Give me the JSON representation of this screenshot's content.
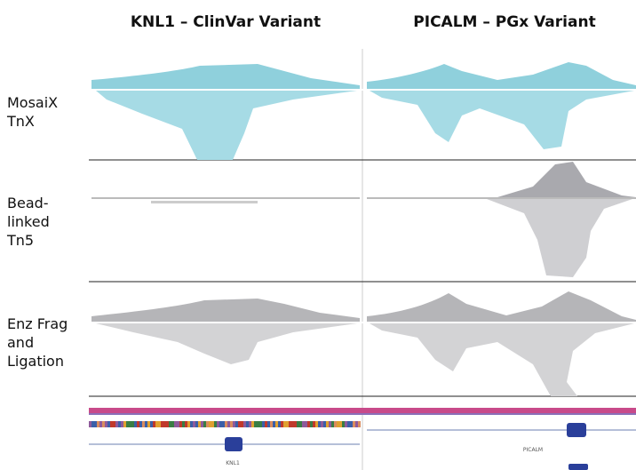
{
  "columns": [
    "KNL1 – ClinVar  Variant",
    "PICALM – PGx Variant"
  ],
  "rows": [
    [
      "MosaiX",
      "TnX"
    ],
    [
      "Bead-",
      "linked",
      "Tn5"
    ],
    [
      "Enz Frag",
      "and",
      "Ligation"
    ]
  ],
  "genes": [
    "KNL1",
    "PICALM"
  ]
}
